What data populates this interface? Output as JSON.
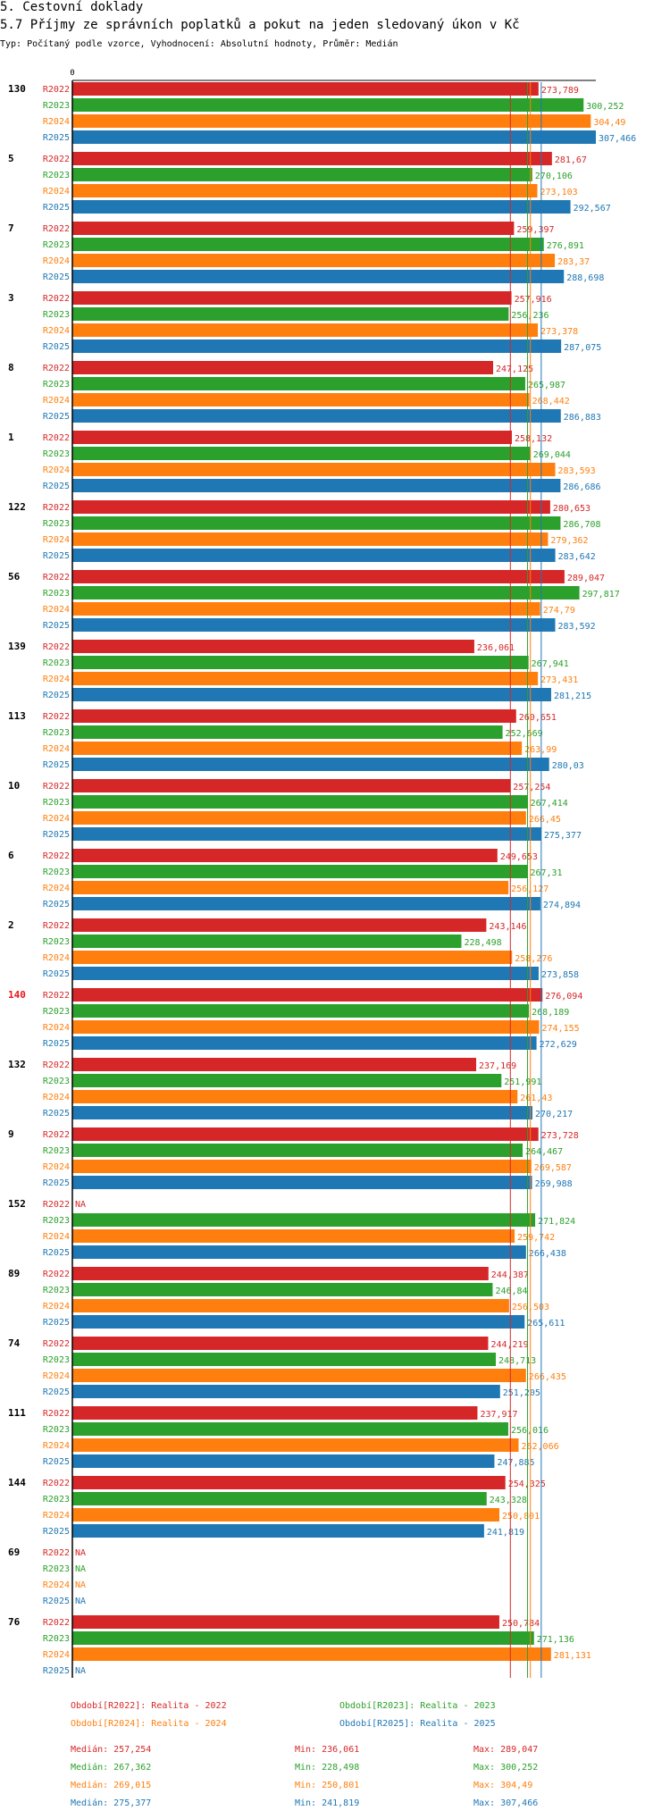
{
  "header": {
    "section_title": "5. Cestovní doklady",
    "chart_title": "5.7 Příjmy ze správních poplatků a pokut na jeden sledovaný úkon v Kč",
    "subtitle": "Typ: Počítaný podle vzorce, Vyhodnocení: Absolutní hodnoty, Průměr: Medián"
  },
  "colors": {
    "R2022": "#d62728",
    "R2023": "#2ca02c",
    "R2024": "#ff7f0e",
    "R2025": "#1f77b4",
    "highlight_group": "#e8151b"
  },
  "chart_data": {
    "type": "bar",
    "orientation": "horizontal",
    "title": "5.7 Příjmy ze správních poplatků a pokut na jeden sledovaný úkon v Kč",
    "axis_zero_label": "0",
    "xlim": [
      0,
      310
    ],
    "series_names": [
      "R2022",
      "R2023",
      "R2024",
      "R2025"
    ],
    "na_label": "NA",
    "highlighted_group": "140",
    "groups": [
      {
        "name": "130",
        "values": [
          273.789,
          300.252,
          304.49,
          307.466
        ],
        "labels": [
          "273,789",
          "300,252",
          "304,49",
          "307,466"
        ]
      },
      {
        "name": "5",
        "values": [
          281.67,
          270.106,
          273.103,
          292.567
        ],
        "labels": [
          "281,67",
          "270,106",
          "273,103",
          "292,567"
        ]
      },
      {
        "name": "7",
        "values": [
          259.397,
          276.891,
          283.37,
          288.698
        ],
        "labels": [
          "259,397",
          "276,891",
          "283,37",
          "288,698"
        ]
      },
      {
        "name": "3",
        "values": [
          257.916,
          256.236,
          273.378,
          287.075
        ],
        "labels": [
          "257,916",
          "256,236",
          "273,378",
          "287,075"
        ]
      },
      {
        "name": "8",
        "values": [
          247.125,
          265.987,
          268.442,
          286.883
        ],
        "labels": [
          "247,125",
          "265,987",
          "268,442",
          "286,883"
        ]
      },
      {
        "name": "1",
        "values": [
          258.132,
          269.044,
          283.593,
          286.686
        ],
        "labels": [
          "258,132",
          "269,044",
          "283,593",
          "286,686"
        ]
      },
      {
        "name": "122",
        "values": [
          280.653,
          286.708,
          279.362,
          283.642
        ],
        "labels": [
          "280,653",
          "286,708",
          "279,362",
          "283,642"
        ]
      },
      {
        "name": "56",
        "values": [
          289.047,
          297.817,
          274.79,
          283.592
        ],
        "labels": [
          "289,047",
          "297,817",
          "274,79",
          "283,592"
        ]
      },
      {
        "name": "139",
        "values": [
          236.061,
          267.941,
          273.431,
          281.215
        ],
        "labels": [
          "236,061",
          "267,941",
          "273,431",
          "281,215"
        ]
      },
      {
        "name": "113",
        "values": [
          260.651,
          252.669,
          263.99,
          280.03
        ],
        "labels": [
          "260,651",
          "252,669",
          "263,99",
          "280,03"
        ]
      },
      {
        "name": "10",
        "values": [
          257.254,
          267.414,
          266.45,
          275.377
        ],
        "labels": [
          "257,254",
          "267,414",
          "266,45",
          "275,377"
        ]
      },
      {
        "name": "6",
        "values": [
          249.653,
          267.31,
          256.127,
          274.894
        ],
        "labels": [
          "249,653",
          "267,31",
          "256,127",
          "274,894"
        ]
      },
      {
        "name": "2",
        "values": [
          243.146,
          228.498,
          258.276,
          273.858
        ],
        "labels": [
          "243,146",
          "228,498",
          "258,276",
          "273,858"
        ]
      },
      {
        "name": "140",
        "values": [
          276.094,
          268.189,
          274.155,
          272.629
        ],
        "labels": [
          "276,094",
          "268,189",
          "274,155",
          "272,629"
        ]
      },
      {
        "name": "132",
        "values": [
          237.169,
          251.991,
          261.43,
          270.217
        ],
        "labels": [
          "237,169",
          "251,991",
          "261,43",
          "270,217"
        ]
      },
      {
        "name": "9",
        "values": [
          273.728,
          264.467,
          269.587,
          269.988
        ],
        "labels": [
          "273,728",
          "264,467",
          "269,587",
          "269,988"
        ]
      },
      {
        "name": "152",
        "values": [
          null,
          271.824,
          259.742,
          266.438
        ],
        "labels": [
          "NA",
          "271,824",
          "259,742",
          "266,438"
        ]
      },
      {
        "name": "89",
        "values": [
          244.387,
          246.84,
          256.503,
          265.611
        ],
        "labels": [
          "244,387",
          "246,84",
          "256,503",
          "265,611"
        ]
      },
      {
        "name": "74",
        "values": [
          244.219,
          248.713,
          266.435,
          251.205
        ],
        "labels": [
          "244,219",
          "248,713",
          "266,435",
          "251,205"
        ]
      },
      {
        "name": "111",
        "values": [
          237.917,
          256.016,
          262.066,
          247.885
        ],
        "labels": [
          "237,917",
          "256,016",
          "262,066",
          "247,885"
        ]
      },
      {
        "name": "144",
        "values": [
          254.325,
          243.328,
          250.801,
          241.819
        ],
        "labels": [
          "254,325",
          "243,328",
          "250,801",
          "241,819"
        ]
      },
      {
        "name": "69",
        "values": [
          null,
          null,
          null,
          null
        ],
        "labels": [
          "NA",
          "NA",
          "NA",
          "NA"
        ]
      },
      {
        "name": "76",
        "values": [
          250.784,
          271.136,
          281.131,
          null
        ],
        "labels": [
          "250,784",
          "271,136",
          "281,131",
          "NA"
        ]
      }
    ],
    "median_lines": [
      257.254,
      267.362,
      269.015,
      275.377
    ],
    "legend": [
      {
        "series": "R2022",
        "text": "Období[R2022]: Realita - 2022"
      },
      {
        "series": "R2023",
        "text": "Období[R2023]: Realita - 2023"
      },
      {
        "series": "R2024",
        "text": "Období[R2024]: Realita - 2024"
      },
      {
        "series": "R2025",
        "text": "Období[R2025]: Realita - 2025"
      }
    ],
    "stats": [
      {
        "series": "R2022",
        "median": "Medián: 257,254",
        "min": "Min: 236,061",
        "max": "Max: 289,047"
      },
      {
        "series": "R2023",
        "median": "Medián: 267,362",
        "min": "Min: 228,498",
        "max": "Max: 300,252"
      },
      {
        "series": "R2024",
        "median": "Medián: 269,015",
        "min": "Min: 250,801",
        "max": "Max: 304,49"
      },
      {
        "series": "R2025",
        "median": "Medián: 275,377",
        "min": "Min: 241,819",
        "max": "Max: 307,466"
      }
    ]
  }
}
